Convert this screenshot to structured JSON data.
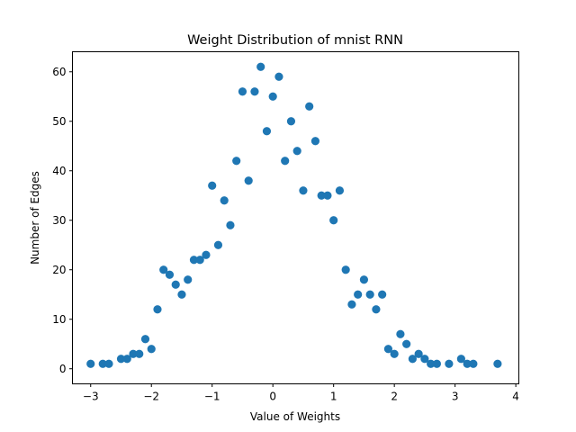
{
  "chart_data": {
    "type": "scatter",
    "title": "Weight Distribution of mnist RNN",
    "xlabel": "Value of Weights",
    "ylabel": "Number of Edges",
    "xlim": [
      -3.3,
      4.05
    ],
    "ylim": [
      -3.05,
      64.05
    ],
    "xticks": [
      -3,
      -2,
      -1,
      0,
      1,
      2,
      3,
      4
    ],
    "yticks": [
      0,
      10,
      20,
      30,
      40,
      50,
      60
    ],
    "grid": false,
    "marker_color": "#1f77b4",
    "series": [
      {
        "x": [
          -3.0,
          -2.8,
          -2.7,
          -2.5,
          -2.4,
          -2.3,
          -2.2,
          -2.1,
          -2.0,
          -1.9,
          -1.8,
          -1.7,
          -1.6,
          -1.5,
          -1.4,
          -1.3,
          -1.2,
          -1.1,
          -1.0,
          -0.9,
          -0.8,
          -0.7,
          -0.6,
          -0.5,
          -0.4,
          -0.3,
          -0.2,
          -0.1,
          0.0,
          0.1,
          0.2,
          0.3,
          0.4,
          0.5,
          0.6,
          0.7,
          0.8,
          0.9,
          1.0,
          1.1,
          1.2,
          1.3,
          1.4,
          1.5,
          1.6,
          1.7,
          1.8,
          1.9,
          2.0,
          2.1,
          2.2,
          2.3,
          2.4,
          2.5,
          2.6,
          2.7,
          2.9,
          3.1,
          3.2,
          3.3,
          3.7
        ],
        "y": [
          1,
          1,
          1,
          2,
          2,
          3,
          3,
          6,
          4,
          12,
          20,
          19,
          17,
          15,
          18,
          22,
          22,
          23,
          37,
          25,
          34,
          29,
          42,
          56,
          38,
          56,
          61,
          48,
          55,
          59,
          42,
          50,
          44,
          36,
          53,
          46,
          35,
          35,
          30,
          36,
          20,
          13,
          15,
          18,
          15,
          12,
          15,
          4,
          3,
          7,
          5,
          2,
          3,
          2,
          1,
          1,
          1,
          2,
          1,
          1,
          1
        ]
      }
    ]
  }
}
